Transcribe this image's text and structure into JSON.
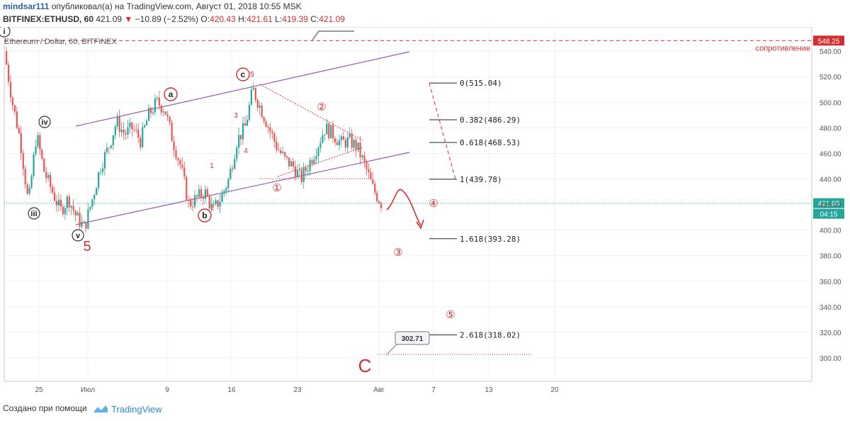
{
  "header": {
    "user": "mindsar111",
    "published": "опубликовал(а) на TradingView.com, Август 01, 2018 10:55 MSK",
    "symbol": "BITFINEX:ETHUSD, 60",
    "last": "421.09",
    "change": "−10.89 (−2.52%)",
    "open_label": "O:",
    "open": "420.43",
    "high_label": "H:",
    "high": "421.61",
    "low_label": "L:",
    "low": "419.39",
    "close_label": "C:",
    "close": "421.09"
  },
  "chart_data": {
    "type": "candlestick",
    "title": "Ethereum / Dollar, 60, BITFINEX",
    "x_ticks": [
      "25",
      "Июл",
      "9",
      "16",
      "23",
      "Авг",
      "7",
      "13",
      "20"
    ],
    "y_ticks": [
      300.0,
      320.0,
      340.0,
      360.0,
      380.0,
      400.0,
      420.0,
      440.0,
      460.0,
      480.0,
      500.0,
      520.0,
      540.0
    ],
    "ylim": [
      290,
      553
    ],
    "price_path": [
      [
        0,
        540
      ],
      [
        1,
        500
      ],
      [
        2,
        470
      ],
      [
        3,
        420
      ],
      [
        4,
        475
      ],
      [
        5,
        445
      ],
      [
        6,
        430
      ],
      [
        7,
        415
      ],
      [
        8,
        425
      ],
      [
        9,
        410
      ],
      [
        10,
        402
      ],
      [
        11,
        425
      ],
      [
        12,
        450
      ],
      [
        13,
        465
      ],
      [
        14,
        485
      ],
      [
        15,
        475
      ],
      [
        16,
        480
      ],
      [
        17,
        470
      ],
      [
        18,
        490
      ],
      [
        19,
        500
      ],
      [
        20,
        495
      ],
      [
        21,
        470
      ],
      [
        22,
        450
      ],
      [
        23,
        420
      ],
      [
        24,
        425
      ],
      [
        25,
        430
      ],
      [
        26,
        415
      ],
      [
        27,
        425
      ],
      [
        28,
        440
      ],
      [
        29,
        470
      ],
      [
        30,
        480
      ],
      [
        31,
        510
      ],
      [
        32,
        495
      ],
      [
        33,
        480
      ],
      [
        34,
        465
      ],
      [
        35,
        455
      ],
      [
        36,
        450
      ],
      [
        37,
        440
      ],
      [
        38,
        452
      ],
      [
        39,
        465
      ],
      [
        40,
        480
      ],
      [
        41,
        475
      ],
      [
        42,
        468
      ],
      [
        43,
        470
      ],
      [
        44,
        465
      ],
      [
        45,
        450
      ],
      [
        46,
        432
      ],
      [
        47,
        421.09
      ]
    ],
    "current_price": "421.09",
    "countdown": "04:15",
    "resistance": {
      "price": "548.25",
      "label": "сопротивление"
    },
    "fib_levels": [
      {
        "label": "0(515.04)",
        "value": 515.04
      },
      {
        "label": "0.382(486.29)",
        "value": 486.29
      },
      {
        "label": "0.618(468.53)",
        "value": 468.53
      },
      {
        "label": "1(439.78)",
        "value": 439.78
      },
      {
        "label": "1.618(393.28)",
        "value": 393.28
      },
      {
        "label": "2.618(318.02)",
        "value": 318.02
      }
    ],
    "target_callout": "302.71",
    "wave_labels_dark": [
      "i",
      "iv",
      "iii",
      "v"
    ],
    "wave_labels_red_circled": [
      "a",
      "b",
      "c"
    ],
    "wave_labels_red_small": [
      "5",
      "3",
      "4",
      "1",
      "2"
    ],
    "projection_labels": [
      "①",
      "②",
      "③",
      "④",
      "⑤"
    ],
    "big_labels": [
      "5",
      "C"
    ]
  },
  "footer": {
    "made_with": "Создано при помощи",
    "brand": "TradingView"
  }
}
